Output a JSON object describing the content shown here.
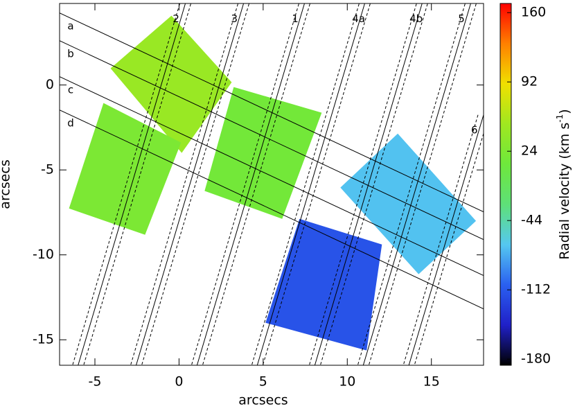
{
  "chart_data": {
    "type": "map",
    "xlabel": "arcsecs",
    "ylabel": "arcsecs",
    "xlim": [
      -7.1,
      18.1
    ],
    "ylim": [
      -16.5,
      4.8
    ],
    "xticks": [
      -5,
      0,
      5,
      10,
      15
    ],
    "yticks": [
      0,
      -5,
      -10,
      -15
    ],
    "colorbar": {
      "label": [
        "Radial velocity (km s",
        "-1",
        ")"
      ],
      "clim": [
        -186,
        169
      ],
      "ticks": [
        160,
        92,
        24,
        -44,
        -112,
        -180
      ],
      "colors": [
        "#000000",
        "#2020c8",
        "#2a60f0",
        "#55c8f0",
        "#5ee078",
        "#6ee83c",
        "#a0e820",
        "#f0e000",
        "#ff8000",
        "#ff0000"
      ]
    },
    "patches": [
      {
        "value": 45,
        "corners": [
          [
            -0.45,
            4.08
          ],
          [
            3.13,
            0.16
          ],
          [
            0.16,
            -4.0
          ],
          [
            -4.07,
            0.98
          ]
        ]
      },
      {
        "value": 22,
        "corners": [
          [
            -4.49,
            -1.06
          ],
          [
            0.12,
            -3.39
          ],
          [
            -2.02,
            -8.82
          ],
          [
            -6.54,
            -7.27
          ]
        ]
      },
      {
        "value": 15,
        "corners": [
          [
            3.25,
            -0.12
          ],
          [
            8.48,
            -1.63
          ],
          [
            6.13,
            -7.88
          ],
          [
            1.52,
            -6.24
          ]
        ]
      },
      {
        "value": -70,
        "corners": [
          [
            13.0,
            -2.86
          ],
          [
            17.65,
            -8.0
          ],
          [
            14.24,
            -11.14
          ],
          [
            9.59,
            -6.04
          ]
        ]
      },
      {
        "value": -115,
        "corners": [
          [
            7.16,
            -7.88
          ],
          [
            12.06,
            -9.39
          ],
          [
            11.15,
            -15.63
          ],
          [
            5.14,
            -14.0
          ]
        ]
      }
    ],
    "slits": [
      {
        "label": "a",
        "start": [
          -7.1,
          4.24
        ],
        "end": [
          18.1,
          -7.47
        ]
      },
      {
        "label": "b",
        "start": [
          -7.1,
          2.61
        ],
        "end": [
          18.1,
          -9.1
        ]
      },
      {
        "label": "c",
        "start": [
          -7.1,
          0.49
        ],
        "end": [
          18.1,
          -11.22
        ]
      },
      {
        "label": "d",
        "start": [
          -7.1,
          -1.47
        ],
        "end": [
          18.1,
          -13.18
        ]
      },
      {
        "label": "2",
        "start": [
          0.37,
          4.78
        ],
        "end": [
          -6.0,
          -16.5
        ],
        "dashed": true
      },
      {
        "label": "3",
        "start": [
          3.83,
          4.78
        ],
        "end": [
          -2.55,
          -16.5
        ],
        "dashed": true
      },
      {
        "label": "1",
        "start": [
          7.45,
          4.78
        ],
        "end": [
          1.07,
          -16.5
        ],
        "dashed": true
      },
      {
        "label": "4a",
        "start": [
          11.03,
          4.78
        ],
        "end": [
          4.65,
          -16.5
        ],
        "dashed": true
      },
      {
        "label": "4b",
        "start": [
          14.44,
          4.78
        ],
        "end": [
          8.07,
          -16.5
        ],
        "dashed": true
      },
      {
        "label": "5",
        "start": [
          17.33,
          4.78
        ],
        "end": [
          10.95,
          -16.5
        ],
        "dashed": true
      },
      {
        "label": "6",
        "start": [
          18.1,
          -1.76
        ],
        "end": [
          13.66,
          -16.5
        ],
        "dashed": true
      }
    ]
  }
}
